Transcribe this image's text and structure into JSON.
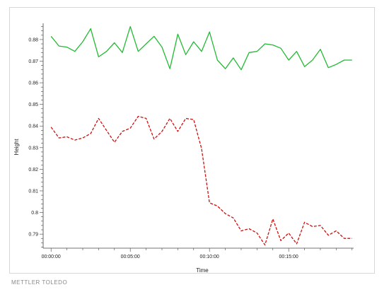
{
  "brand": "METTLER TOLEDO",
  "chart_data": {
    "type": "line",
    "title": "",
    "xlabel": "Time",
    "ylabel": "Height",
    "x_tick_labels": [
      "00:00:00",
      "00:05:00",
      "00:10:00",
      "00:15:00"
    ],
    "x_tick_values": [
      0,
      5,
      10,
      15
    ],
    "y_tick_labels": [
      "0.79",
      "0.8",
      "0.81",
      "0.82",
      "0.83",
      "0.84",
      "0.85",
      "0.86",
      "0.87",
      "0.88"
    ],
    "y_tick_values": [
      0.79,
      0.8,
      0.81,
      0.82,
      0.83,
      0.84,
      0.85,
      0.86,
      0.87,
      0.88
    ],
    "xlim": [
      -0.5,
      19.1
    ],
    "ylim": [
      0.7835,
      0.8875
    ],
    "grid": false,
    "legend": "none",
    "series": [
      {
        "color": "#22bb33",
        "style": "solid",
        "x": [
          0,
          0.5,
          1,
          1.5,
          2,
          2.5,
          3,
          3.5,
          4,
          4.5,
          5,
          5.5,
          6,
          6.5,
          7,
          7.5,
          8,
          8.5,
          9,
          9.5,
          10,
          10.5,
          11,
          11.5,
          12,
          12.5,
          13,
          13.5,
          14,
          14.5,
          15,
          15.5,
          16,
          16.5,
          17,
          17.5,
          18,
          18.5,
          19
        ],
        "y": [
          0.8815,
          0.877,
          0.8765,
          0.8745,
          0.879,
          0.885,
          0.872,
          0.8745,
          0.8785,
          0.874,
          0.886,
          0.8745,
          0.878,
          0.8815,
          0.8765,
          0.8665,
          0.8825,
          0.873,
          0.879,
          0.8745,
          0.8835,
          0.8705,
          0.8665,
          0.8715,
          0.866,
          0.874,
          0.8745,
          0.878,
          0.8775,
          0.876,
          0.8705,
          0.8745,
          0.8675,
          0.8705,
          0.8755,
          0.867,
          0.8685,
          0.8705,
          0.8705
        ]
      },
      {
        "color": "#cc1111",
        "style": "dashed",
        "x": [
          0,
          0.5,
          1,
          1.5,
          2,
          2.5,
          3,
          3.5,
          4,
          4.5,
          5,
          5.5,
          6,
          6.5,
          7,
          7.5,
          8,
          8.5,
          9,
          9.5,
          10,
          10.5,
          11,
          11.5,
          12,
          12.5,
          13,
          13.5,
          14,
          14.5,
          15,
          15.5,
          16,
          16.5,
          17,
          17.5,
          18,
          18.5,
          19
        ],
        "y": [
          0.8395,
          0.8345,
          0.835,
          0.8335,
          0.8345,
          0.8365,
          0.8435,
          0.838,
          0.8325,
          0.8375,
          0.839,
          0.8445,
          0.8435,
          0.834,
          0.8375,
          0.8435,
          0.8375,
          0.8435,
          0.843,
          0.8295,
          0.8045,
          0.803,
          0.7995,
          0.7975,
          0.7915,
          0.7925,
          0.7905,
          0.785,
          0.797,
          0.787,
          0.7905,
          0.7855,
          0.7955,
          0.7935,
          0.794,
          0.7895,
          0.7915,
          0.788,
          0.788
        ]
      }
    ]
  }
}
